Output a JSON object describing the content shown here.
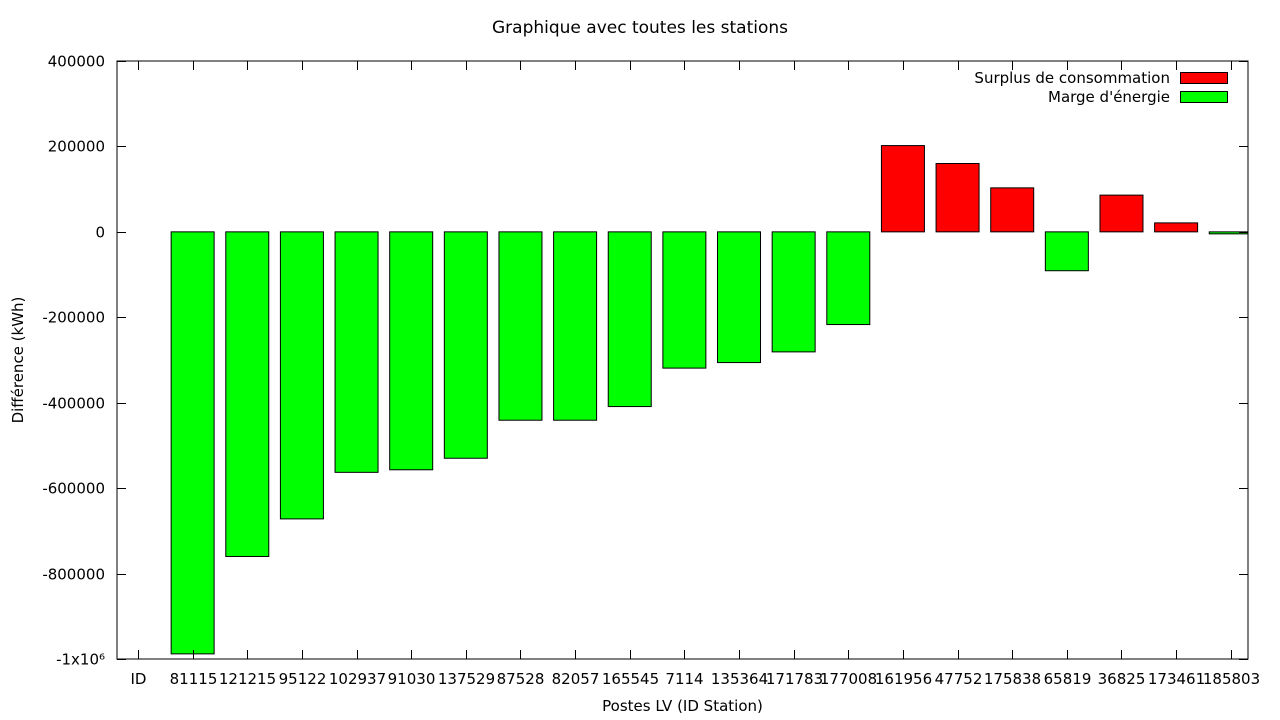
{
  "chart_data": {
    "type": "bar",
    "title": "Graphique avec toutes les stations",
    "xlabel": "Postes LV (ID Station)",
    "ylabel": "Différence (kWh)",
    "ylim": [
      -1000000,
      400000
    ],
    "yticks": [
      400000,
      200000,
      0,
      -200000,
      -400000,
      -600000,
      -800000,
      -1000000
    ],
    "ytick_labels": [
      "400000",
      "200000",
      "0",
      "-200000",
      "-400000",
      "-600000",
      "-800000",
      "-1x10⁶"
    ],
    "grid": false,
    "legend_position": "top-right",
    "categories": [
      "ID",
      "81115",
      "121215",
      "95122",
      "102937",
      "91030",
      "137529",
      "87528",
      "82057",
      "165545",
      "7114",
      "135364",
      "171783",
      "177008",
      "161956",
      "47752",
      "175838",
      "65819",
      "36825",
      "173461",
      "185803"
    ],
    "values": [
      null,
      -988000,
      -760000,
      -672000,
      -563000,
      -557000,
      -530000,
      -441000,
      -441000,
      -409000,
      -319000,
      -306000,
      -281000,
      -217000,
      202000,
      160000,
      103000,
      -91000,
      86000,
      21000,
      -4000
    ],
    "series": [
      {
        "name": "Surplus de consommation",
        "color": "#ff0000"
      },
      {
        "name": "Marge d'énergie",
        "color": "#00ff00"
      }
    ]
  }
}
